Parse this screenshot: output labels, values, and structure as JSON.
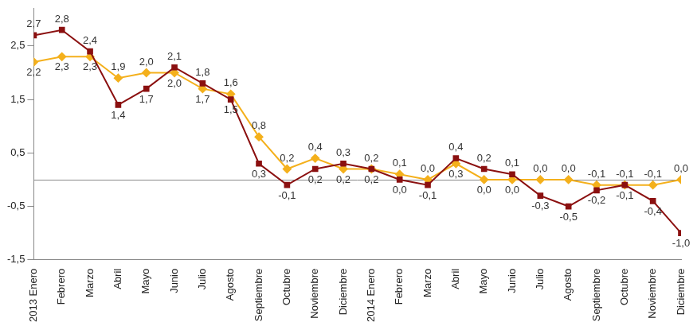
{
  "chart_data": {
    "type": "line",
    "categories": [
      "2013 Enero",
      "Febrero",
      "Marzo",
      "Abril",
      "Mayo",
      "Junio",
      "Julio",
      "Agosto",
      "Septiembre",
      "Octubre",
      "Noviembre",
      "Diciembre",
      "2014 Enero",
      "Febrero",
      "Marzo",
      "Abril",
      "Mayo",
      "Junio",
      "Julio",
      "Agosto",
      "Septiembre",
      "Octubre",
      "Noviembre",
      "Diciembre"
    ],
    "series": [
      {
        "color": "#8b1010",
        "marker": "square",
        "line_style": "solid",
        "values": [
          2.7,
          2.8,
          2.4,
          1.4,
          1.7,
          2.1,
          1.8,
          1.5,
          0.3,
          -0.1,
          0.2,
          0.3,
          0.2,
          0.0,
          -0.1,
          0.4,
          0.2,
          0.1,
          -0.3,
          -0.5,
          -0.2,
          -0.1,
          -0.4,
          -1.0
        ],
        "value_labels": [
          "2,7",
          "2,8",
          "2,4",
          "1,4",
          "1,7",
          "2,1",
          "1,8",
          "1,5",
          "0,3",
          "-0,1",
          "0,2",
          "0,3",
          "0,2",
          "0,0",
          "-0,1",
          "0,4",
          "0,2",
          "0,1",
          "-0,3",
          "-0,5",
          "-0,2",
          "-0,1",
          "-0,4",
          "-1,0"
        ]
      },
      {
        "color": "#f4b01c",
        "marker": "diamond",
        "line_style": "solid",
        "values": [
          2.2,
          2.3,
          2.3,
          1.9,
          2.0,
          2.0,
          1.7,
          1.6,
          0.8,
          0.2,
          0.4,
          0.2,
          0.2,
          0.1,
          0.0,
          0.3,
          0.0,
          0.0,
          0.0,
          0.0,
          -0.1,
          -0.1,
          -0.1,
          0.0
        ],
        "value_labels": [
          "2,2",
          "2,3",
          "2,3",
          "1,9",
          "2,0",
          "2,0",
          "1,7",
          "1,6",
          "0,8",
          "0,2",
          "0,4",
          "0,2",
          "0,2",
          "0,1",
          "0,0",
          "0,3",
          "0,0",
          "0,0",
          "0,0",
          "0,0",
          "-0,1",
          "-0,1",
          "-0,1",
          "0,0"
        ]
      }
    ],
    "ylim": [
      -1.5,
      3.2
    ],
    "yticks": [
      {
        "value": -1.5,
        "label": "-1,5"
      },
      {
        "value": -0.5,
        "label": "-0,5"
      },
      {
        "value": 0.5,
        "label": "0,5"
      },
      {
        "value": 1.5,
        "label": "1,5"
      },
      {
        "value": 2.5,
        "label": "2,5"
      }
    ],
    "grid": false,
    "data_labels": true
  }
}
